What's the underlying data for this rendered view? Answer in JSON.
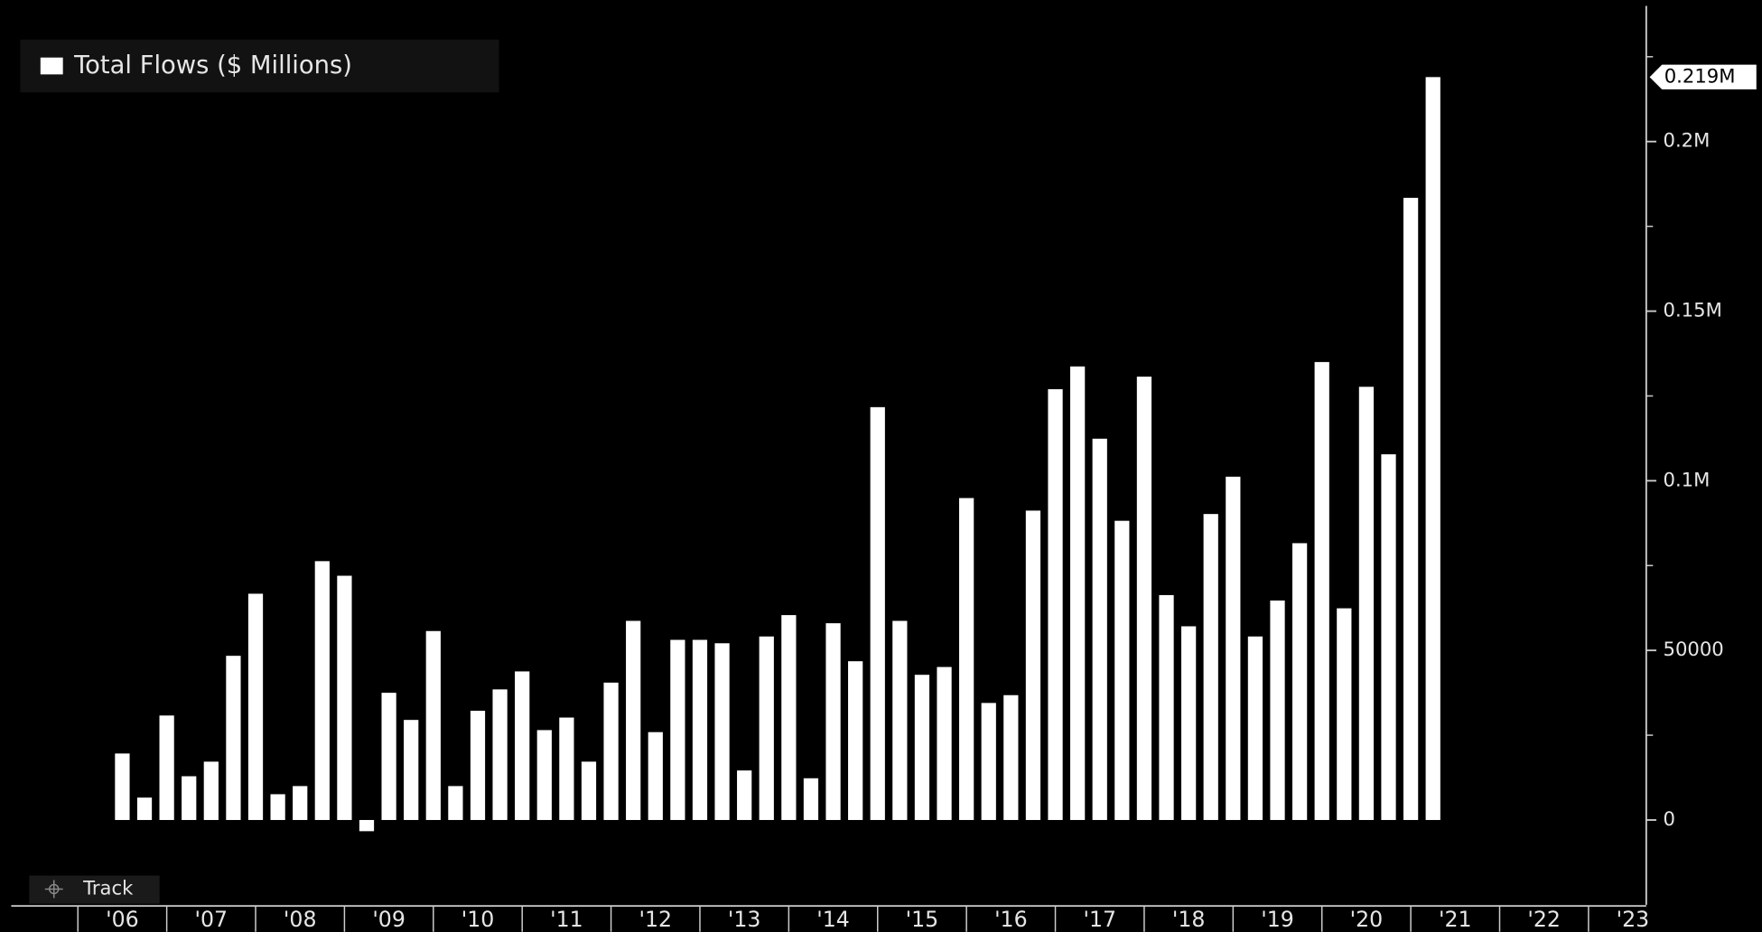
{
  "chart_data": {
    "type": "bar",
    "legend": "Total Flows ($ Millions)",
    "button": "Track",
    "color": "#ffffff",
    "x": [
      2006.5,
      2006.75,
      2007,
      2007.25,
      2007.5,
      2007.75,
      2008,
      2008.25,
      2008.5,
      2008.75,
      2009,
      2009.25,
      2009.5,
      2009.75,
      2010,
      2010.25,
      2010.5,
      2010.75,
      2011,
      2011.25,
      2011.5,
      2011.75,
      2012,
      2012.25,
      2012.5,
      2012.75,
      2013,
      2013.25,
      2013.5,
      2013.75,
      2014,
      2014.25,
      2014.5,
      2014.75,
      2015,
      2015.25,
      2015.5,
      2015.75,
      2016,
      2016.25,
      2016.5,
      2016.75,
      2017,
      2017.25,
      2017.5,
      2017.75,
      2018,
      2018.25,
      2018.5,
      2018.75,
      2019,
      2019.25,
      2019.5,
      2019.75,
      2020,
      2020.25,
      2020.5,
      2020.75,
      2021,
      2021.25
    ],
    "values": [
      19600,
      6600,
      30800,
      12900,
      17200,
      48400,
      66700,
      7600,
      10000,
      76300,
      72000,
      -3300,
      37500,
      29500,
      55700,
      10000,
      32200,
      38500,
      43800,
      26500,
      30200,
      17200,
      40500,
      58700,
      25900,
      53100,
      53100,
      52100,
      14600,
      54100,
      60400,
      12300,
      58000,
      46800,
      121700,
      58700,
      42800,
      45100,
      94900,
      34500,
      36800,
      91200,
      127000,
      133700,
      112400,
      88200,
      130700,
      66300,
      57100,
      90200,
      101200,
      54100,
      64700,
      81600,
      135000,
      62400,
      127700,
      107800,
      183400,
      219000
    ],
    "value_labels": [
      null,
      null,
      null,
      null,
      null,
      null,
      null,
      null,
      null,
      null,
      null,
      null,
      null,
      null,
      null,
      null,
      null,
      null,
      null,
      null,
      null,
      null,
      null,
      null,
      null,
      null,
      null,
      null,
      null,
      null,
      null,
      null,
      null,
      null,
      null,
      null,
      null,
      null,
      null,
      null,
      null,
      null,
      null,
      null,
      null,
      null,
      null,
      null,
      null,
      null,
      null,
      null,
      null,
      null,
      null,
      null,
      null,
      null,
      null,
      "0.219M"
    ],
    "xlim": [
      2005.25,
      2023.65
    ],
    "xticks": [
      {
        "value": 2006,
        "label": "'06"
      },
      {
        "value": 2007,
        "label": "'07"
      },
      {
        "value": 2008,
        "label": "'08"
      },
      {
        "value": 2009,
        "label": "'09"
      },
      {
        "value": 2010,
        "label": "'10"
      },
      {
        "value": 2011,
        "label": "'11"
      },
      {
        "value": 2012,
        "label": "'12"
      },
      {
        "value": 2013,
        "label": "'13"
      },
      {
        "value": 2014,
        "label": "'14"
      },
      {
        "value": 2015,
        "label": "'15"
      },
      {
        "value": 2016,
        "label": "'16"
      },
      {
        "value": 2017,
        "label": "'17"
      },
      {
        "value": 2018,
        "label": "'18"
      },
      {
        "value": 2019,
        "label": "'19"
      },
      {
        "value": 2020,
        "label": "'20"
      },
      {
        "value": 2021,
        "label": "'21"
      },
      {
        "value": 2022,
        "label": "'22"
      },
      {
        "value": 2023,
        "label": "'23"
      }
    ],
    "ylim": [
      -25000,
      240000
    ],
    "yticks": [
      0,
      50000,
      {
        "value": 100000,
        "label": "0.1M"
      },
      {
        "value": 150000,
        "label": "0.15M"
      },
      {
        "value": 200000,
        "label": "0.2M"
      }
    ],
    "yminor_ticks": [
      25000,
      75000,
      125000,
      175000,
      225000
    ]
  }
}
